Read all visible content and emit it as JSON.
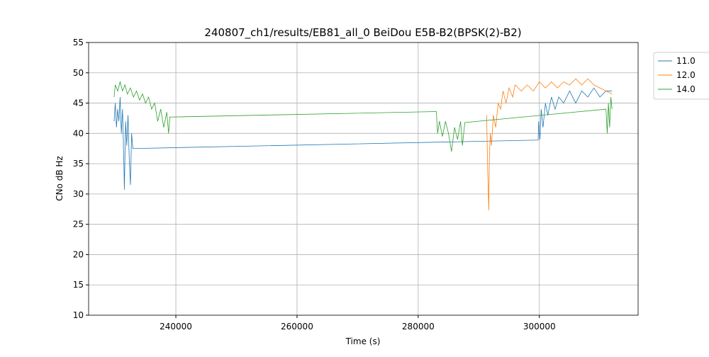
{
  "chart_data": {
    "type": "line",
    "title": "240807_ch1/results/EB81_all_0 BeiDou E5B-B2(BPSK(2)-B2)",
    "x_label": "Time (s)",
    "y_label": "CNo dB Hz",
    "xlim": [
      225600,
      316300
    ],
    "ylim": [
      10,
      55
    ],
    "xticks": [
      240000,
      260000,
      280000,
      300000
    ],
    "yticks": [
      10,
      15,
      20,
      25,
      30,
      35,
      40,
      45,
      50,
      55
    ],
    "grid": true,
    "legend": "upper right outside",
    "series": [
      {
        "name": "11.0",
        "color": "#1f77b4",
        "x": [
          229800,
          230000,
          230200,
          230400,
          230600,
          230800,
          231000,
          231200,
          231400,
          231500,
          231700,
          231900,
          232100,
          232300,
          232500,
          232700,
          232900,
          299800,
          299900,
          300100,
          300300,
          300600,
          301000,
          301400,
          302000,
          302600,
          303200,
          304000,
          305000,
          306000,
          307000,
          308000,
          309000,
          310000,
          311000,
          312000
        ],
        "values": [
          42,
          45,
          41,
          44,
          42,
          46,
          40,
          44,
          36,
          30.7,
          42,
          38,
          43,
          36,
          31.5,
          40,
          37.5,
          38.9,
          42,
          39,
          44,
          41,
          45,
          43,
          46,
          44,
          46,
          45,
          47,
          45,
          47,
          46,
          47.5,
          46,
          47,
          47
        ]
      },
      {
        "name": "12.0",
        "color": "#ff7f0e",
        "x": [
          291300,
          291450,
          291550,
          291650,
          291750,
          291900,
          292100,
          292400,
          292800,
          293200,
          293600,
          294000,
          294500,
          295000,
          295600,
          296000,
          297000,
          298000,
          299000,
          300000,
          301000,
          302000,
          303000,
          304000,
          305000,
          306000,
          307000,
          308000,
          309000,
          310000,
          311000,
          312000
        ],
        "values": [
          43,
          35,
          31,
          27.3,
          36,
          40,
          38,
          43,
          41,
          45,
          44,
          47,
          45,
          47.5,
          46,
          48,
          47,
          48,
          47,
          48.5,
          47.5,
          48.5,
          47.5,
          48.5,
          48,
          49,
          48,
          49,
          48,
          47.5,
          47,
          46.5
        ]
      },
      {
        "name": "14.0",
        "color": "#2ca02c",
        "x": [
          229800,
          230000,
          230400,
          230800,
          231200,
          231600,
          232000,
          232500,
          233000,
          233500,
          234000,
          234500,
          235000,
          235500,
          236000,
          236500,
          237000,
          237500,
          238000,
          238500,
          238800,
          239000,
          283000,
          283200,
          283500,
          284000,
          284500,
          285000,
          285500,
          286000,
          286500,
          287000,
          287300,
          287700,
          311000,
          311200,
          311400,
          311600,
          311800,
          312000
        ],
        "values": [
          46,
          48,
          47,
          48.5,
          47,
          48,
          46.5,
          47.5,
          46,
          47,
          45.5,
          46.5,
          45,
          46,
          44,
          45,
          42,
          44,
          41,
          43.5,
          40,
          42.7,
          43.6,
          40,
          42,
          39.5,
          42,
          40,
          37,
          41,
          39,
          42,
          38,
          41.8,
          44,
          40,
          45,
          41,
          46,
          44
        ]
      }
    ]
  }
}
